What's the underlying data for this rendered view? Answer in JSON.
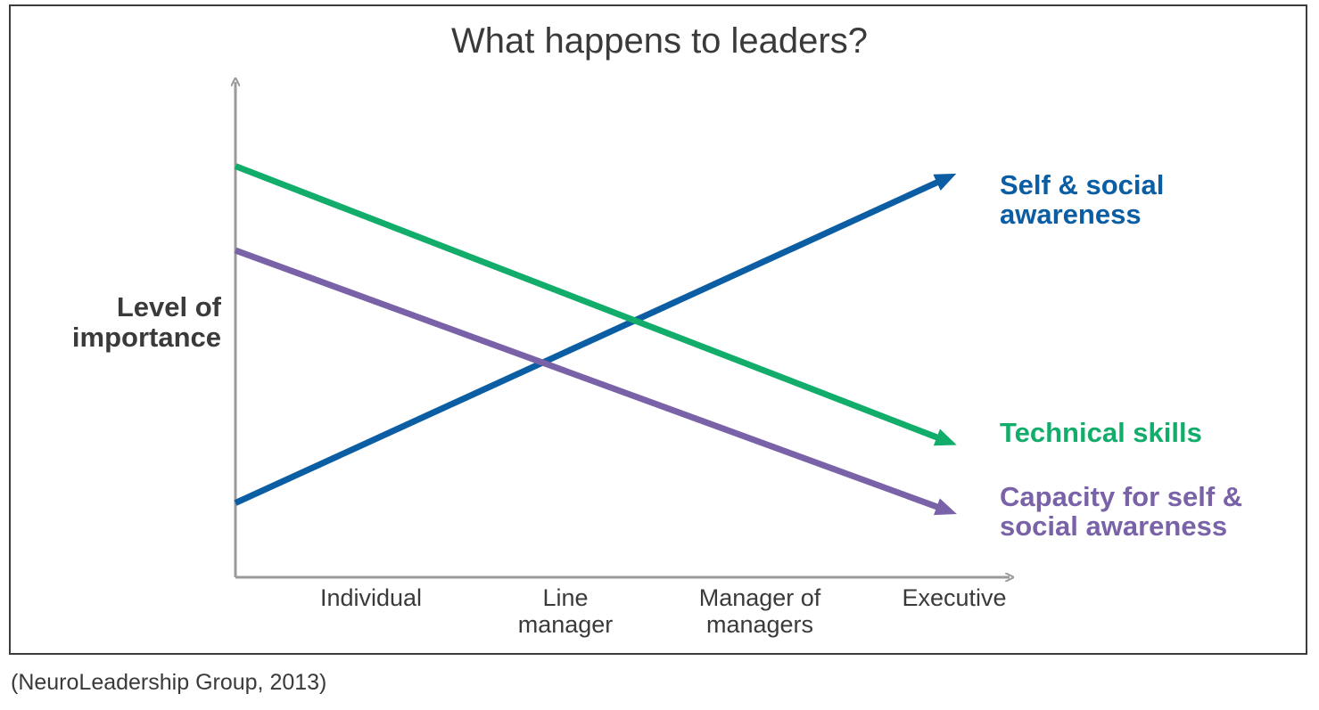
{
  "chart_data": {
    "type": "line",
    "title": "What happens to leaders?",
    "ylabel": [
      "Level of",
      "importance"
    ],
    "xlabel": "",
    "categories": [
      [
        "Individual"
      ],
      [
        "Line",
        "manager"
      ],
      [
        "Manager of",
        "managers"
      ],
      [
        "Executive"
      ]
    ],
    "ylim": [
      0,
      100
    ],
    "xlim": [
      0,
      4
    ],
    "grid": false,
    "series": [
      {
        "name": [
          "Self & social",
          "awareness"
        ],
        "color": "#0b5ea3",
        "x": [
          0,
          3.8
        ],
        "values": [
          15,
          80
        ]
      },
      {
        "name": [
          "Technical skills"
        ],
        "color": "#12ad6b",
        "x": [
          0,
          3.8
        ],
        "values": [
          83,
          28
        ]
      },
      {
        "name": [
          "Capacity for self &",
          "social awareness"
        ],
        "color": "#7a62a8",
        "x": [
          0,
          3.8
        ],
        "values": [
          66,
          14
        ]
      }
    ],
    "axis_color": "#9a9a9a"
  },
  "citation": "(NeuroLeadership Group, 2013)"
}
